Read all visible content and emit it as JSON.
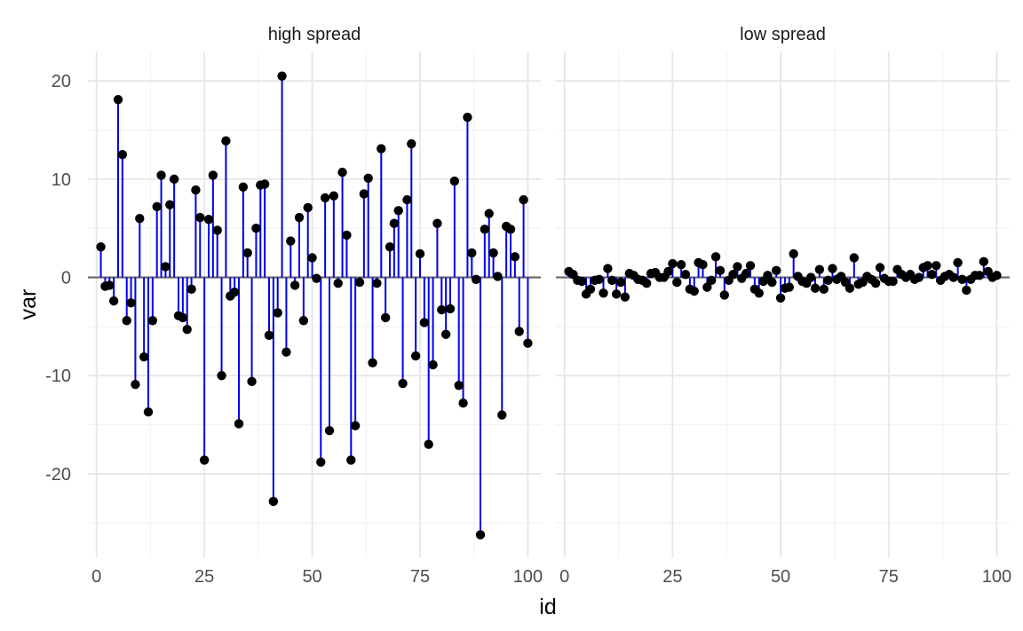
{
  "chart_data": {
    "type": "lollipop",
    "xlabel": "id",
    "ylabel": "var",
    "xlim": [
      -2,
      103
    ],
    "ylim": [
      -28.5,
      23
    ],
    "x_ticks": [
      0,
      25,
      50,
      75,
      100
    ],
    "y_ticks": [
      -20,
      -10,
      0,
      10,
      20
    ],
    "y_minor_ticks": [
      -25,
      -15,
      -5,
      5,
      15
    ],
    "x_minor_ticks": [
      12.5,
      37.5,
      62.5,
      87.5
    ],
    "baseline": 0,
    "grid": true,
    "colors": {
      "stem": "#0000ee",
      "point": "#000000",
      "baseline": "#666666",
      "grid_major": "#e6e6e6",
      "grid_minor": "#f2f2f2"
    },
    "panels": [
      {
        "title": "high spread",
        "x": [
          1,
          2,
          3,
          4,
          5,
          6,
          7,
          8,
          9,
          10,
          11,
          12,
          13,
          14,
          15,
          16,
          17,
          18,
          19,
          20,
          21,
          22,
          23,
          24,
          25,
          26,
          27,
          28,
          29,
          30,
          31,
          32,
          33,
          34,
          35,
          36,
          37,
          38,
          39,
          40,
          41,
          42,
          43,
          44,
          45,
          46,
          47,
          48,
          49,
          50,
          51,
          52,
          53,
          54,
          55,
          56,
          57,
          58,
          59,
          60,
          61,
          62,
          63,
          64,
          65,
          66,
          67,
          68,
          69,
          70,
          71,
          72,
          73,
          74,
          75,
          76,
          77,
          78,
          79,
          80,
          81,
          82,
          83,
          84,
          85,
          86,
          87,
          88,
          89,
          90,
          91,
          92,
          93,
          94,
          95,
          96,
          97,
          98,
          99,
          100
        ],
        "values": [
          3.1,
          -0.9,
          -0.8,
          -2.4,
          18.1,
          12.5,
          -4.4,
          -2.6,
          -10.9,
          6.0,
          -8.1,
          -13.7,
          -4.4,
          7.2,
          10.4,
          1.1,
          7.4,
          10.0,
          -3.9,
          -4.1,
          -5.3,
          -1.2,
          8.9,
          6.1,
          -18.6,
          5.9,
          10.4,
          4.8,
          -10.0,
          13.9,
          -1.9,
          -1.5,
          -14.9,
          9.2,
          2.5,
          -10.6,
          5.0,
          9.4,
          9.5,
          -5.9,
          -22.8,
          -3.6,
          20.5,
          -7.6,
          3.7,
          -0.8,
          6.1,
          -4.4,
          7.1,
          2.0,
          -0.1,
          -18.8,
          8.1,
          -15.6,
          8.3,
          -0.6,
          10.7,
          4.3,
          -18.6,
          -15.1,
          -0.5,
          8.5,
          10.1,
          -8.7,
          -0.6,
          13.1,
          -4.1,
          3.1,
          5.5,
          6.8,
          -10.8,
          7.9,
          13.6,
          -8.0,
          2.4,
          -4.6,
          -17.0,
          -8.9,
          5.5,
          -3.3,
          -5.8,
          -3.2,
          9.8,
          -11.0,
          -12.8,
          16.3,
          2.5,
          -0.2,
          -26.2,
          4.9,
          6.5,
          2.5,
          0.1,
          -14.0,
          5.2,
          4.9,
          2.1,
          -5.5,
          7.9,
          -6.7
        ]
      },
      {
        "title": "low spread",
        "x": [
          1,
          2,
          3,
          4,
          5,
          6,
          7,
          8,
          9,
          10,
          11,
          12,
          13,
          14,
          15,
          16,
          17,
          18,
          19,
          20,
          21,
          22,
          23,
          24,
          25,
          26,
          27,
          28,
          29,
          30,
          31,
          32,
          33,
          34,
          35,
          36,
          37,
          38,
          39,
          40,
          41,
          42,
          43,
          44,
          45,
          46,
          47,
          48,
          49,
          50,
          51,
          52,
          53,
          54,
          55,
          56,
          57,
          58,
          59,
          60,
          61,
          62,
          63,
          64,
          65,
          66,
          67,
          68,
          69,
          70,
          71,
          72,
          73,
          74,
          75,
          76,
          77,
          78,
          79,
          80,
          81,
          82,
          83,
          84,
          85,
          86,
          87,
          88,
          89,
          90,
          91,
          92,
          93,
          94,
          95,
          96,
          97,
          98,
          99,
          100
        ],
        "values": [
          0.6,
          0.3,
          -0.3,
          -0.4,
          -1.7,
          -1.2,
          -0.3,
          -0.2,
          -1.6,
          0.9,
          -0.3,
          -1.7,
          -0.5,
          -2.0,
          0.4,
          0.2,
          -0.2,
          -0.3,
          -0.6,
          0.4,
          0.5,
          0.0,
          0.0,
          0.6,
          1.4,
          -0.5,
          1.3,
          0.3,
          -1.2,
          -1.4,
          1.5,
          1.3,
          -1.0,
          -0.3,
          2.1,
          0.7,
          -1.8,
          -0.3,
          0.3,
          1.1,
          -0.1,
          0.4,
          1.2,
          -1.2,
          -1.6,
          -0.4,
          0.2,
          -0.5,
          0.7,
          -2.1,
          -1.1,
          -1.0,
          2.4,
          0.1,
          -0.4,
          -0.6,
          0.0,
          -1.1,
          0.8,
          -1.2,
          -0.3,
          0.9,
          -0.2,
          0.1,
          -0.5,
          -1.1,
          2.0,
          -0.7,
          -0.5,
          0.1,
          -0.2,
          -0.6,
          1.0,
          -0.1,
          -0.4,
          -0.4,
          0.8,
          0.3,
          0.0,
          0.3,
          -0.2,
          0.0,
          1.0,
          1.2,
          0.3,
          1.2,
          -0.3,
          0.1,
          0.3,
          0.0,
          1.5,
          -0.2,
          -1.3,
          -0.2,
          0.2,
          0.2,
          1.6,
          0.6,
          0.0,
          0.2
        ]
      }
    ]
  }
}
